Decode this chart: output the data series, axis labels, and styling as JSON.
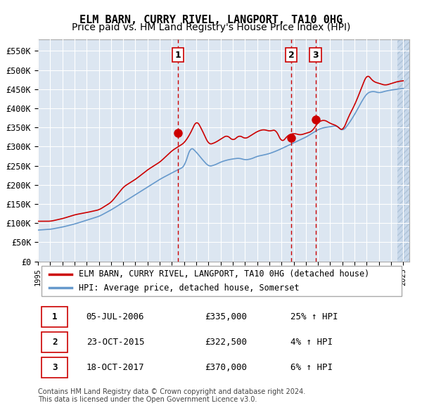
{
  "title": "ELM BARN, CURRY RIVEL, LANGPORT, TA10 0HG",
  "subtitle": "Price paid vs. HM Land Registry's House Price Index (HPI)",
  "ylabel": "",
  "xlim_start": 1995.0,
  "xlim_end": 2025.5,
  "ylim": [
    0,
    580000
  ],
  "yticks": [
    0,
    50000,
    100000,
    150000,
    200000,
    250000,
    300000,
    350000,
    400000,
    450000,
    500000,
    550000
  ],
  "ytick_labels": [
    "£0",
    "£50K",
    "£100K",
    "£150K",
    "£200K",
    "£250K",
    "£300K",
    "£350K",
    "£400K",
    "£450K",
    "£500K",
    "£550K"
  ],
  "bg_color": "#dce6f1",
  "plot_bg": "#dce6f1",
  "hatch_color": "#c0cfe0",
  "red_line_color": "#cc0000",
  "blue_line_color": "#6699cc",
  "sale_marker_color": "#cc0000",
  "vline_color": "#cc0000",
  "transaction_dates": [
    2006.504,
    2015.81,
    2017.79
  ],
  "transaction_prices": [
    335000,
    322500,
    370000
  ],
  "transaction_labels": [
    "1",
    "2",
    "3"
  ],
  "legend_label_red": "ELM BARN, CURRY RIVEL, LANGPORT, TA10 0HG (detached house)",
  "legend_label_blue": "HPI: Average price, detached house, Somerset",
  "table_rows": [
    [
      "1",
      "05-JUL-2006",
      "£335,000",
      "25% ↑ HPI"
    ],
    [
      "2",
      "23-OCT-2015",
      "£322,500",
      "4% ↑ HPI"
    ],
    [
      "3",
      "18-OCT-2017",
      "£370,000",
      "6% ↑ HPI"
    ]
  ],
  "footer": "Contains HM Land Registry data © Crown copyright and database right 2024.\nThis data is licensed under the Open Government Licence v3.0.",
  "title_fontsize": 11,
  "subtitle_fontsize": 10
}
